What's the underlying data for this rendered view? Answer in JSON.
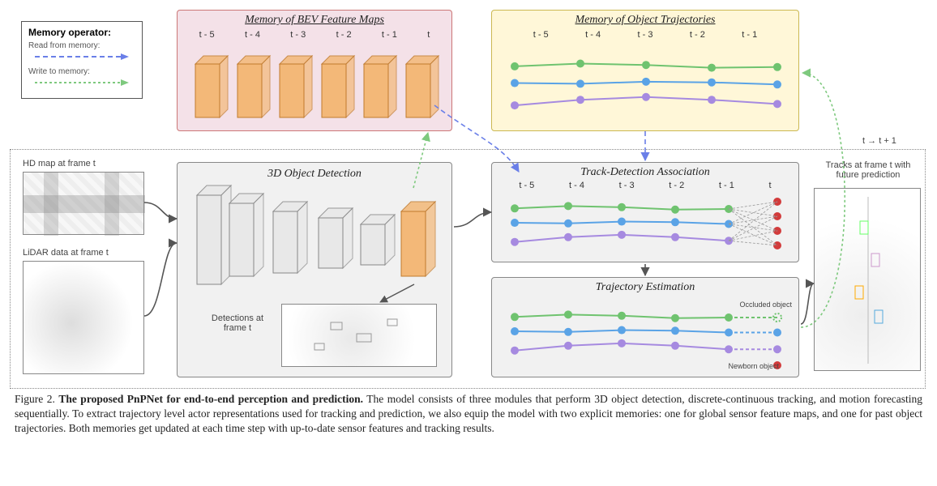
{
  "caption": {
    "prefix": "Figure 2. ",
    "title": "The proposed PnPNet for end-to-end perception and prediction.",
    "body": " The model consists of three modules that perform 3D object detection, discrete-continuous tracking, and motion forecasting sequentially. To extract trajectory level actor representations used for tracking and prediction, we also equip the model with two explicit memories: one for global sensor feature maps, and one for past object trajectories. Both memories get updated at each time step with up-to-date sensor features and tracking results."
  },
  "legend": {
    "title": "Memory operator:",
    "read_label": "Read from memory:",
    "write_label": "Write to memory:",
    "read_color": "#6a7fe8",
    "write_color": "#7ec97e"
  },
  "panels": {
    "bev": {
      "title": "Memory of BEV Feature Maps",
      "bg": "#f4e1e8",
      "border": "#c77",
      "ticks": [
        "t - 5",
        "t - 4",
        "t - 3",
        "t - 2",
        "t - 1",
        "t"
      ],
      "block_fill": "#f3b878",
      "block_stroke": "#c07a2d"
    },
    "trajmem": {
      "title": "Memory of Object Trajectories",
      "bg": "#fff7d8",
      "border": "#cbb852",
      "ticks": [
        "t - 5",
        "t - 4",
        "t - 3",
        "t - 2",
        "t - 1"
      ],
      "series_colors": [
        "#6fc36f",
        "#5aa3e6",
        "#a68ae0"
      ]
    },
    "det3d": {
      "title": "3D Object Detection",
      "sub_label": "Detections at frame t",
      "bg": "#f1f1f1",
      "border": "#888",
      "cnn_fill": "#e8e8e8",
      "cnn_stroke": "#888",
      "last_fill": "#f3b878",
      "last_stroke": "#c07a2d"
    },
    "assoc": {
      "title": "Track-Detection Association",
      "bg": "#f1f1f1",
      "border": "#888",
      "ticks": [
        "t - 5",
        "t - 4",
        "t - 3",
        "t - 2",
        "t - 1",
        "t"
      ],
      "series_colors": [
        "#6fc36f",
        "#5aa3e6",
        "#a68ae0"
      ],
      "new_det_color": "#d23b3b"
    },
    "trajest": {
      "title": "Trajectory Estimation",
      "bg": "#f1f1f1",
      "border": "#888",
      "series_colors": [
        "#6fc36f",
        "#5aa3e6",
        "#a68ae0"
      ],
      "occluded_label": "Occluded object",
      "newborn_label": "Newborn object",
      "newborn_color": "#d23b3b"
    }
  },
  "inputs": {
    "hd_label": "HD map at frame t",
    "lidar_label": "LiDAR data at frame t"
  },
  "output": {
    "label": "Tracks at frame t with future prediction"
  },
  "tick_annot": "t → t + 1",
  "flow": {
    "read_dash": "6 4",
    "write_dash": "3 3",
    "arrow_stroke_w": 1.6
  },
  "traj_points": {
    "green_y": [
      0.22,
      0.18,
      0.2,
      0.24,
      0.23
    ],
    "blue_y": [
      0.46,
      0.47,
      0.44,
      0.45,
      0.48
    ],
    "purple_y": [
      0.78,
      0.7,
      0.66,
      0.7,
      0.76
    ]
  }
}
